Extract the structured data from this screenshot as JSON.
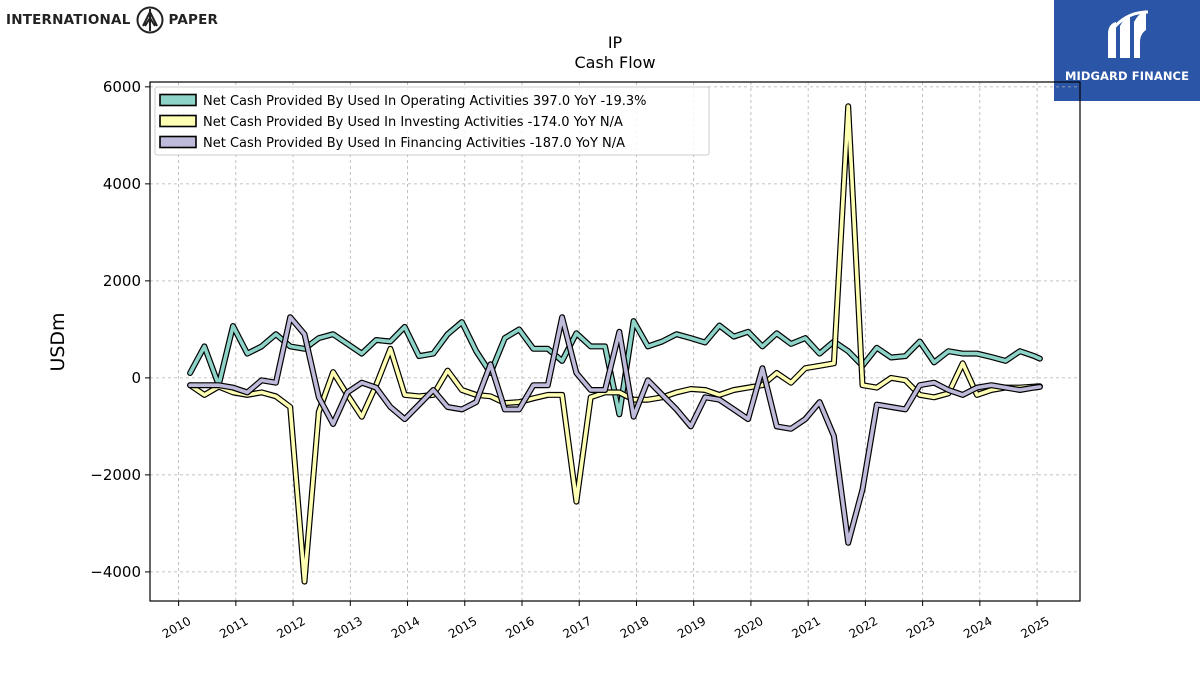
{
  "branding": {
    "company_left": "INTERNATIONAL",
    "company_right": "PAPER",
    "publisher": "MIDGARD FINANCE"
  },
  "colors": {
    "operating": "#8dd3c7",
    "investing": "#ffffb3",
    "financing": "#bebada",
    "publisher_bg": "#2b55a6"
  },
  "chart_data": {
    "type": "line",
    "title": "IP",
    "subtitle": "Cash Flow",
    "xlabel": "",
    "ylabel": "USDm",
    "xlim": [
      2009.5,
      2025.75
    ],
    "ylim": [
      -4600,
      6100
    ],
    "yticks": [
      -4000,
      -2000,
      0,
      2000,
      4000,
      6000
    ],
    "xticks": [
      2010,
      2011,
      2012,
      2013,
      2014,
      2015,
      2016,
      2017,
      2018,
      2019,
      2020,
      2021,
      2022,
      2023,
      2024,
      2025
    ],
    "grid": true,
    "legend_position": "top-left",
    "x": [
      2010.2,
      2010.45,
      2010.7,
      2010.95,
      2011.2,
      2011.45,
      2011.7,
      2011.95,
      2012.2,
      2012.45,
      2012.7,
      2012.95,
      2013.2,
      2013.45,
      2013.7,
      2013.95,
      2014.2,
      2014.45,
      2014.7,
      2014.95,
      2015.2,
      2015.45,
      2015.7,
      2015.95,
      2016.2,
      2016.45,
      2016.7,
      2016.95,
      2017.2,
      2017.45,
      2017.7,
      2017.95,
      2018.2,
      2018.45,
      2018.7,
      2018.95,
      2019.2,
      2019.45,
      2019.7,
      2019.95,
      2020.2,
      2020.45,
      2020.7,
      2020.95,
      2021.2,
      2021.45,
      2021.7,
      2021.95,
      2022.2,
      2022.45,
      2022.7,
      2022.95,
      2023.2,
      2023.45,
      2023.7,
      2023.95,
      2024.2,
      2024.45,
      2024.7,
      2024.95,
      2025.05
    ],
    "series": [
      {
        "name": "Net Cash Provided By Used In Operating Activities",
        "legend": "Net Cash Provided By Used In Operating Activities  397.0 YoY -19.3%",
        "color_key": "operating",
        "values": [
          100,
          650,
          -150,
          1070,
          500,
          650,
          900,
          650,
          600,
          820,
          900,
          700,
          500,
          780,
          750,
          1050,
          450,
          500,
          900,
          1150,
          550,
          100,
          820,
          1000,
          600,
          600,
          350,
          920,
          650,
          650,
          -750,
          1170,
          650,
          750,
          900,
          820,
          730,
          1080,
          850,
          950,
          650,
          920,
          700,
          820,
          500,
          750,
          550,
          250,
          620,
          420,
          450,
          750,
          320,
          550,
          500,
          500,
          430,
          350,
          550,
          450,
          397
        ]
      },
      {
        "name": "Net Cash Provided By Used In Investing Activities",
        "legend": "Net Cash Provided By Used In Investing Activities  -174.0 YoY N/A",
        "color_key": "investing",
        "values": [
          -150,
          -350,
          -180,
          -300,
          -350,
          -300,
          -380,
          -600,
          -4200,
          -700,
          120,
          -350,
          -800,
          -150,
          600,
          -350,
          -380,
          -350,
          150,
          -250,
          -350,
          -380,
          -520,
          -500,
          -420,
          -350,
          -350,
          -2550,
          -400,
          -300,
          -300,
          -450,
          -450,
          -400,
          -300,
          -230,
          -250,
          -350,
          -250,
          -200,
          -150,
          100,
          -100,
          200,
          250,
          300,
          5600,
          -150,
          -200,
          0,
          -50,
          -350,
          -400,
          -320,
          300,
          -350,
          -250,
          -200,
          -200,
          -180,
          -174
        ]
      },
      {
        "name": "Net Cash Provided By Used In Financing Activities",
        "legend": "Net Cash Provided By Used In Financing Activities  -187.0 YoY N/A",
        "color_key": "financing",
        "values": [
          -150,
          -150,
          -150,
          -200,
          -300,
          -50,
          -100,
          1250,
          900,
          -400,
          -950,
          -300,
          -100,
          -200,
          -600,
          -850,
          -550,
          -250,
          -600,
          -650,
          -500,
          280,
          -650,
          -650,
          -150,
          -150,
          1250,
          100,
          -250,
          -250,
          950,
          -800,
          -50,
          -350,
          -650,
          -1000,
          -400,
          -450,
          -650,
          -850,
          200,
          -1000,
          -1050,
          -850,
          -500,
          -1200,
          -3400,
          -2300,
          -550,
          -600,
          -650,
          -150,
          -100,
          -250,
          -350,
          -200,
          -150,
          -200,
          -250,
          -200,
          -187
        ]
      }
    ]
  }
}
